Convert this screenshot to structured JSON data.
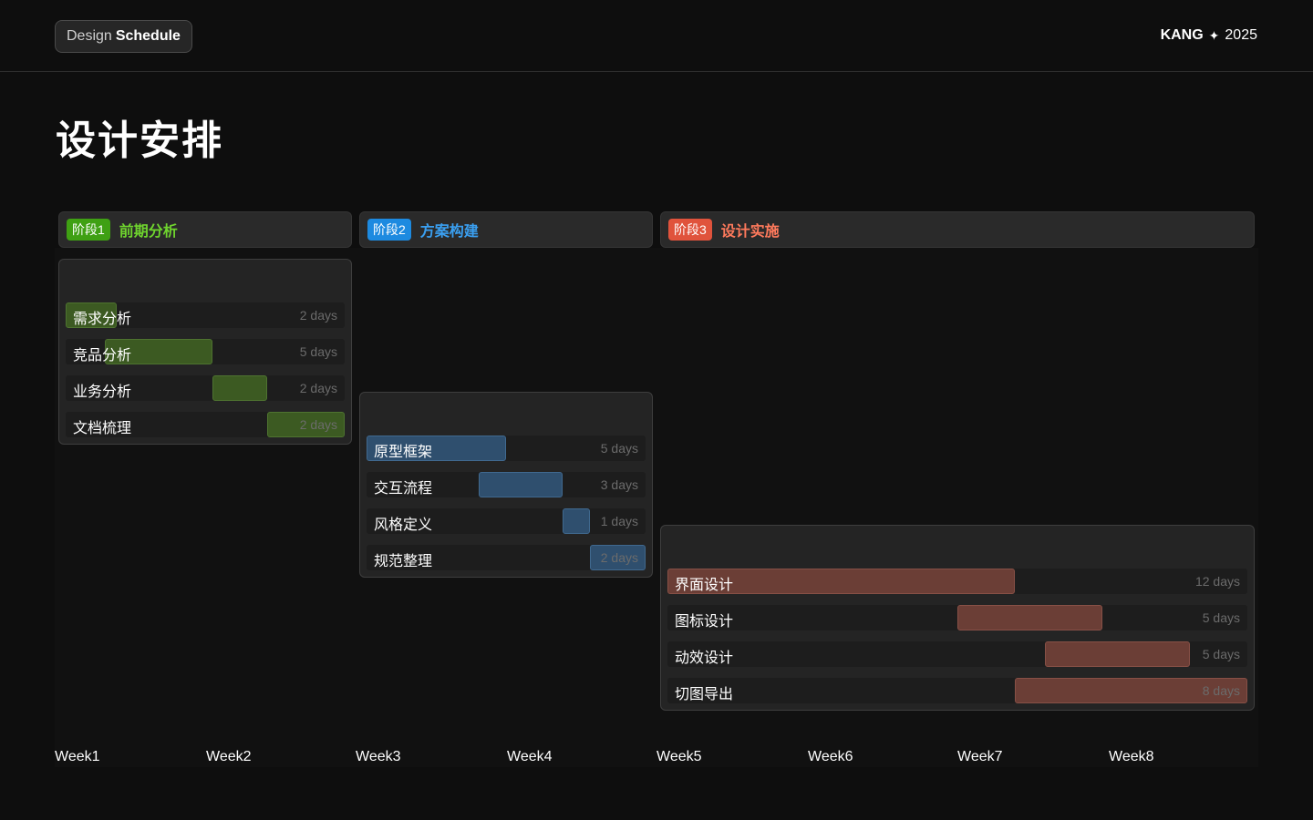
{
  "brand": {
    "part1": "Design",
    "part2": "Schedule"
  },
  "meta": {
    "author": "KANG",
    "separator": "✦",
    "year": "2025"
  },
  "title": "设计安排",
  "phases": [
    {
      "tag": "阶段1",
      "name": "前期分析",
      "tag_color": "#3fa013",
      "name_color": "#6fd42e",
      "bar_color": "#3c5a22",
      "bar_border": "#4e7330",
      "tasks": [
        {
          "label": "需求分析",
          "duration": "2 days"
        },
        {
          "label": "竞品分析",
          "duration": "5 days"
        },
        {
          "label": "业务分析",
          "duration": "2 days"
        },
        {
          "label": "文档梳理",
          "duration": "2 days"
        }
      ]
    },
    {
      "tag": "阶段2",
      "name": "方案构建",
      "tag_color": "#1d8ae0",
      "name_color": "#3a9ff0",
      "bar_color": "#2f4f6e",
      "bar_border": "#40698f",
      "tasks": [
        {
          "label": "原型框架",
          "duration": "5 days"
        },
        {
          "label": "交互流程",
          "duration": "3 days"
        },
        {
          "label": "风格定义",
          "duration": "1 days"
        },
        {
          "label": "规范整理",
          "duration": "2 days"
        }
      ]
    },
    {
      "tag": "阶段3",
      "name": "设计实施",
      "tag_color": "#e0533c",
      "name_color": "#ff7a5c",
      "bar_color": "#6b3e36",
      "bar_border": "#875046",
      "tasks": [
        {
          "label": "界面设计",
          "duration": "12 days"
        },
        {
          "label": "图标设计",
          "duration": "5 days"
        },
        {
          "label": "动效设计",
          "duration": "5 days"
        },
        {
          "label": "切图导出",
          "duration": "8 days"
        }
      ]
    }
  ],
  "weeks": [
    "Week1",
    "Week2",
    "Week3",
    "Week4",
    "Week5",
    "Week6",
    "Week7",
    "Week8"
  ]
}
